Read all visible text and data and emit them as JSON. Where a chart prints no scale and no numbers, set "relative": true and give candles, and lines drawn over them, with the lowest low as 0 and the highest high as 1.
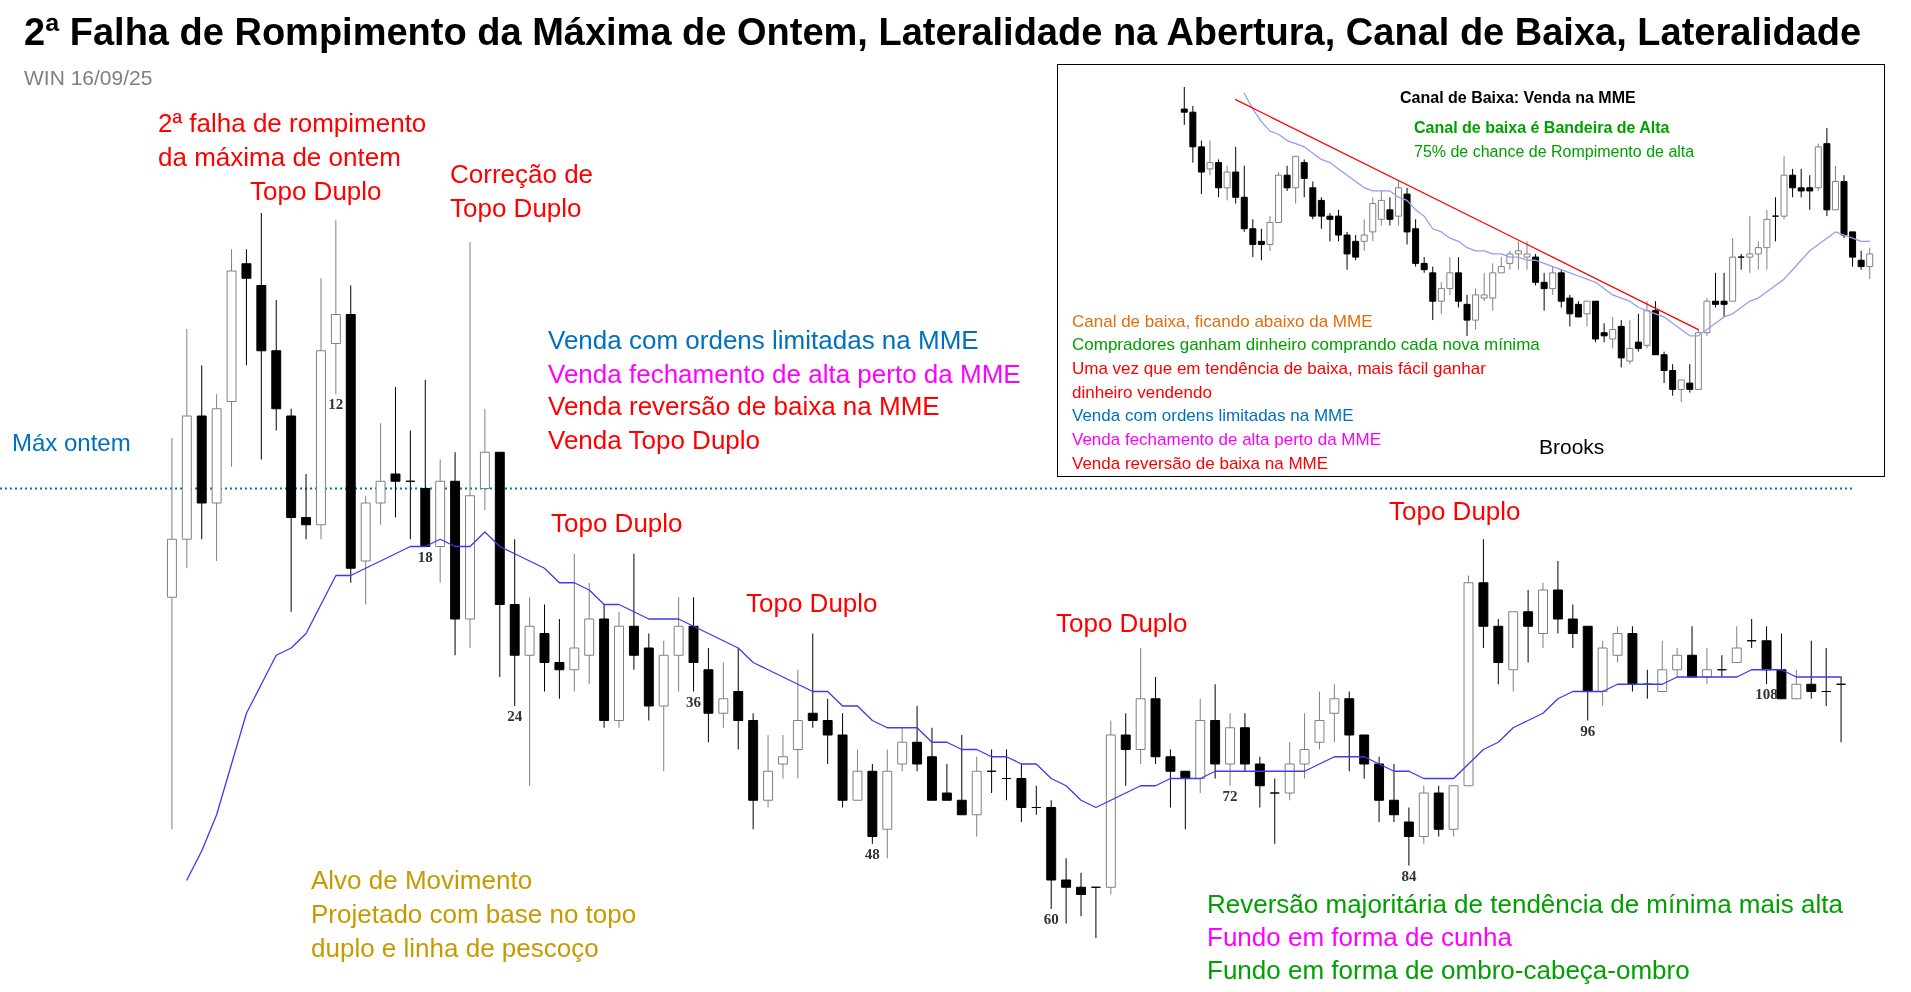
{
  "chart_data": [
    {
      "type": "candlestick",
      "title": "2ª Falha de Rompimento da Máxima de Ontem, Lateralidade na Abertura, Canal de Baixa, Lateralidade",
      "subtitle": "WIN 16/09/25",
      "relative": true,
      "categories": [
        null,
        null,
        null,
        null,
        null,
        null,
        null,
        null,
        null,
        null,
        null,
        "12",
        null,
        null,
        null,
        null,
        null,
        "18",
        null,
        null,
        null,
        null,
        null,
        "24",
        null,
        null,
        null,
        null,
        null,
        null,
        null,
        null,
        null,
        null,
        null,
        "36",
        null,
        null,
        null,
        null,
        null,
        null,
        null,
        null,
        null,
        null,
        null,
        "48",
        null,
        null,
        null,
        null,
        null,
        null,
        null,
        null,
        null,
        null,
        null,
        "60",
        null,
        null,
        null,
        null,
        null,
        null,
        null,
        null,
        null,
        null,
        null,
        "72",
        null,
        null,
        null,
        null,
        null,
        null,
        null,
        null,
        null,
        null,
        null,
        "84",
        null,
        null,
        null,
        null,
        null,
        null,
        null,
        null,
        null,
        null,
        null,
        "96",
        null,
        null,
        null,
        null,
        null,
        null,
        null,
        null,
        null,
        null,
        null,
        "108",
        null,
        null,
        null,
        null,
        null
      ],
      "ohlc": [
        [
          0.47,
          0.69,
          0.15,
          0.55
        ],
        [
          0.55,
          0.84,
          0.51,
          0.72
        ],
        [
          0.72,
          0.79,
          0.55,
          0.6
        ],
        [
          0.6,
          0.75,
          0.52,
          0.73
        ],
        [
          0.74,
          0.95,
          0.65,
          0.92
        ],
        [
          0.93,
          0.95,
          0.79,
          0.91
        ],
        [
          0.9,
          1.0,
          0.66,
          0.81
        ],
        [
          0.81,
          0.88,
          0.7,
          0.73
        ],
        [
          0.72,
          0.73,
          0.45,
          0.58
        ],
        [
          0.58,
          0.64,
          0.55,
          0.57
        ],
        [
          0.57,
          0.91,
          0.55,
          0.81
        ],
        [
          0.82,
          0.99,
          0.75,
          0.86
        ],
        [
          0.86,
          0.9,
          0.49,
          0.51
        ],
        [
          0.52,
          0.61,
          0.46,
          0.6
        ],
        [
          0.6,
          0.71,
          0.57,
          0.63
        ],
        [
          0.64,
          0.76,
          0.58,
          0.63
        ],
        [
          0.63,
          0.7,
          0.55,
          0.63
        ],
        [
          0.62,
          0.77,
          0.54,
          0.54
        ],
        [
          0.54,
          0.66,
          0.49,
          0.63
        ],
        [
          0.63,
          0.67,
          0.39,
          0.44
        ],
        [
          0.44,
          0.96,
          0.4,
          0.61
        ],
        [
          0.62,
          0.73,
          0.59,
          0.67
        ],
        [
          0.67,
          0.67,
          0.36,
          0.46
        ],
        [
          0.46,
          0.55,
          0.32,
          0.39
        ],
        [
          0.39,
          0.47,
          0.21,
          0.43
        ],
        [
          0.42,
          0.46,
          0.34,
          0.38
        ],
        [
          0.38,
          0.44,
          0.33,
          0.37
        ],
        [
          0.37,
          0.53,
          0.34,
          0.4
        ],
        [
          0.39,
          0.49,
          0.35,
          0.44
        ],
        [
          0.44,
          0.46,
          0.29,
          0.3
        ],
        [
          0.3,
          0.45,
          0.29,
          0.43
        ],
        [
          0.43,
          0.53,
          0.37,
          0.39
        ],
        [
          0.4,
          0.42,
          0.3,
          0.32
        ],
        [
          0.32,
          0.41,
          0.23,
          0.39
        ],
        [
          0.39,
          0.47,
          0.34,
          0.43
        ],
        [
          0.43,
          0.47,
          0.34,
          0.38
        ],
        [
          0.37,
          0.4,
          0.27,
          0.31
        ],
        [
          0.31,
          0.38,
          0.29,
          0.33
        ],
        [
          0.34,
          0.4,
          0.26,
          0.3
        ],
        [
          0.3,
          0.31,
          0.15,
          0.19
        ],
        [
          0.19,
          0.28,
          0.18,
          0.23
        ],
        [
          0.24,
          0.28,
          0.22,
          0.25
        ],
        [
          0.26,
          0.37,
          0.22,
          0.3
        ],
        [
          0.31,
          0.42,
          0.29,
          0.3
        ],
        [
          0.3,
          0.33,
          0.24,
          0.28
        ],
        [
          0.28,
          0.31,
          0.18,
          0.19
        ],
        [
          0.19,
          0.26,
          0.19,
          0.23
        ],
        [
          0.23,
          0.24,
          0.13,
          0.14
        ],
        [
          0.15,
          0.26,
          0.11,
          0.23
        ],
        [
          0.24,
          0.29,
          0.23,
          0.27
        ],
        [
          0.27,
          0.32,
          0.23,
          0.24
        ],
        [
          0.25,
          0.29,
          0.19,
          0.19
        ],
        [
          0.2,
          0.24,
          0.19,
          0.19
        ],
        [
          0.19,
          0.28,
          0.17,
          0.17
        ],
        [
          0.17,
          0.25,
          0.14,
          0.23
        ],
        [
          0.23,
          0.26,
          0.2,
          0.23
        ],
        [
          0.22,
          0.26,
          0.19,
          0.22
        ],
        [
          0.22,
          0.24,
          0.16,
          0.18
        ],
        [
          0.18,
          0.21,
          0.17,
          0.18
        ],
        [
          0.18,
          0.19,
          0.04,
          0.08
        ],
        [
          0.08,
          0.11,
          0.02,
          0.07
        ],
        [
          0.07,
          0.09,
          0.03,
          0.06
        ],
        [
          0.07,
          0.07,
          0.0,
          0.07
        ],
        [
          0.07,
          0.3,
          0.06,
          0.28
        ],
        [
          0.28,
          0.31,
          0.21,
          0.26
        ],
        [
          0.26,
          0.4,
          0.24,
          0.33
        ],
        [
          0.33,
          0.36,
          0.24,
          0.25
        ],
        [
          0.25,
          0.26,
          0.18,
          0.23
        ],
        [
          0.23,
          0.23,
          0.15,
          0.22
        ],
        [
          0.22,
          0.33,
          0.2,
          0.3
        ],
        [
          0.3,
          0.35,
          0.22,
          0.24
        ],
        [
          0.24,
          0.31,
          0.21,
          0.29
        ],
        [
          0.29,
          0.31,
          0.23,
          0.24
        ],
        [
          0.24,
          0.25,
          0.18,
          0.21
        ],
        [
          0.2,
          0.22,
          0.13,
          0.2
        ],
        [
          0.2,
          0.27,
          0.19,
          0.24
        ],
        [
          0.24,
          0.31,
          0.22,
          0.26
        ],
        [
          0.27,
          0.34,
          0.26,
          0.3
        ],
        [
          0.31,
          0.35,
          0.27,
          0.33
        ],
        [
          0.33,
          0.34,
          0.23,
          0.28
        ],
        [
          0.28,
          0.28,
          0.22,
          0.24
        ],
        [
          0.24,
          0.25,
          0.16,
          0.19
        ],
        [
          0.19,
          0.24,
          0.16,
          0.17
        ],
        [
          0.16,
          0.18,
          0.1,
          0.14
        ],
        [
          0.14,
          0.21,
          0.13,
          0.2
        ],
        [
          0.2,
          0.21,
          0.14,
          0.15
        ],
        [
          0.15,
          0.21,
          0.14,
          0.21
        ],
        [
          0.21,
          0.5,
          0.21,
          0.49
        ],
        [
          0.49,
          0.55,
          0.4,
          0.43
        ],
        [
          0.43,
          0.44,
          0.35,
          0.38
        ],
        [
          0.37,
          0.45,
          0.34,
          0.45
        ],
        [
          0.45,
          0.48,
          0.38,
          0.43
        ],
        [
          0.42,
          0.49,
          0.4,
          0.48
        ],
        [
          0.48,
          0.52,
          0.42,
          0.44
        ],
        [
          0.44,
          0.46,
          0.4,
          0.42
        ],
        [
          0.43,
          0.43,
          0.3,
          0.34
        ],
        [
          0.34,
          0.41,
          0.32,
          0.4
        ],
        [
          0.39,
          0.43,
          0.38,
          0.42
        ],
        [
          0.42,
          0.43,
          0.34,
          0.35
        ],
        [
          0.35,
          0.37,
          0.33,
          0.35
        ],
        [
          0.34,
          0.41,
          0.34,
          0.37
        ],
        [
          0.37,
          0.4,
          0.36,
          0.39
        ],
        [
          0.39,
          0.43,
          0.36,
          0.36
        ],
        [
          0.36,
          0.4,
          0.35,
          0.37
        ],
        [
          0.37,
          0.39,
          0.36,
          0.37
        ],
        [
          0.38,
          0.43,
          0.38,
          0.4
        ],
        [
          0.41,
          0.44,
          0.4,
          0.41
        ],
        [
          0.41,
          0.43,
          0.35,
          0.37
        ],
        [
          0.37,
          0.42,
          0.33,
          0.33
        ],
        [
          0.33,
          0.37,
          0.33,
          0.35
        ],
        [
          0.35,
          0.41,
          0.33,
          0.34
        ],
        [
          0.34,
          0.4,
          0.32,
          0.34
        ],
        [
          0.35,
          0.36,
          0.27,
          0.35
        ]
      ],
      "series": [
        {
          "type": "line",
          "color": "#3b3bf0",
          "values": [
            null,
            0.08,
            0.12,
            0.17,
            0.24,
            0.31,
            0.35,
            0.39,
            0.4,
            0.42,
            0.46,
            0.5,
            0.5,
            0.51,
            0.52,
            0.53,
            0.54,
            0.54,
            0.55,
            0.54,
            0.54,
            0.56,
            0.54,
            0.53,
            0.52,
            0.51,
            0.49,
            0.49,
            0.48,
            0.46,
            0.46,
            0.45,
            0.44,
            0.44,
            0.44,
            0.43,
            0.42,
            0.41,
            0.4,
            0.38,
            0.37,
            0.36,
            0.35,
            0.34,
            0.34,
            0.32,
            0.32,
            0.3,
            0.29,
            0.29,
            0.29,
            0.27,
            0.27,
            0.26,
            0.26,
            0.25,
            0.25,
            0.24,
            0.24,
            0.22,
            0.21,
            0.19,
            0.18,
            0.19,
            0.2,
            0.21,
            0.21,
            0.22,
            0.22,
            0.22,
            0.23,
            0.23,
            0.23,
            0.23,
            0.23,
            0.23,
            0.23,
            0.24,
            0.25,
            0.25,
            0.25,
            0.24,
            0.23,
            0.23,
            0.22,
            0.22,
            0.22,
            0.24,
            0.26,
            0.27,
            0.29,
            0.3,
            0.31,
            0.33,
            0.34,
            0.34,
            0.34,
            0.35,
            0.35,
            0.35,
            0.35,
            0.36,
            0.36,
            0.36,
            0.36,
            0.36,
            0.37,
            0.37,
            0.37,
            0.36,
            0.36,
            0.36,
            0.36
          ]
        }
      ],
      "ref_lines": [
        {
          "axis": "y",
          "value": 0.62,
          "label": "Máx ontem",
          "color": "#0070c0",
          "line_style": "dotted"
        }
      ],
      "annotations": [
        "2ª falha de rompimento\nda máxima de ontem",
        "Topo Duplo",
        "Correção de\nTopo Duplo",
        "Venda com ordens limitadas na MME",
        "Venda fechamento de alta perto da MME",
        "Venda reversão de baixa na MME",
        "Venda Topo Duplo",
        "Topo Duplo",
        "Topo Duplo",
        "Topo Duplo",
        "Topo Duplo",
        "Alvo de Movimento\nProjetado com base no topo\nduplo e linha de pescoço",
        "Reversão majoritária de tendência de mínima mais alta",
        "Fundo em forma de cunha",
        "Fundo em forma de ombro-cabeça-ombro"
      ]
    },
    {
      "type": "candlestick",
      "title": "Canal de Baixa: Venda na MME",
      "relative": true,
      "categories": [
        null,
        null,
        null,
        null,
        null,
        null,
        null,
        null,
        null,
        null,
        null,
        null,
        null,
        null,
        null,
        null,
        null,
        null,
        null,
        null,
        null,
        null,
        null,
        null,
        null,
        null,
        null,
        null,
        null,
        null,
        null,
        null,
        null,
        null,
        null,
        null,
        null,
        null,
        null,
        null,
        null,
        null,
        null,
        null,
        null,
        null,
        null,
        null,
        null,
        null,
        null,
        null,
        null,
        null,
        null,
        null,
        null,
        null,
        null,
        null,
        null,
        null,
        null,
        null,
        null,
        null,
        null,
        null,
        null,
        null,
        null,
        null,
        null,
        null,
        null,
        null,
        null,
        null,
        null,
        null,
        null
      ],
      "ohlc": [
        [
          0.93,
          1.0,
          0.88,
          0.92
        ],
        [
          0.92,
          0.94,
          0.76,
          0.81
        ],
        [
          0.81,
          0.83,
          0.66,
          0.73
        ],
        [
          0.74,
          0.83,
          0.72,
          0.76
        ],
        [
          0.76,
          0.77,
          0.65,
          0.68
        ],
        [
          0.68,
          0.75,
          0.64,
          0.73
        ],
        [
          0.73,
          0.81,
          0.63,
          0.65
        ],
        [
          0.65,
          0.75,
          0.54,
          0.55
        ],
        [
          0.55,
          0.58,
          0.46,
          0.5
        ],
        [
          0.51,
          0.55,
          0.45,
          0.5
        ],
        [
          0.5,
          0.59,
          0.48,
          0.57
        ],
        [
          0.57,
          0.73,
          0.57,
          0.72
        ],
        [
          0.72,
          0.75,
          0.67,
          0.68
        ],
        [
          0.68,
          0.78,
          0.63,
          0.78
        ],
        [
          0.76,
          0.77,
          0.65,
          0.71
        ],
        [
          0.68,
          0.7,
          0.58,
          0.59
        ],
        [
          0.64,
          0.65,
          0.55,
          0.59
        ],
        [
          0.59,
          0.6,
          0.51,
          0.58
        ],
        [
          0.59,
          0.61,
          0.51,
          0.53
        ],
        [
          0.53,
          0.54,
          0.42,
          0.47
        ],
        [
          0.51,
          0.53,
          0.45,
          0.46
        ],
        [
          0.51,
          0.58,
          0.48,
          0.53
        ],
        [
          0.54,
          0.65,
          0.51,
          0.63
        ],
        [
          0.58,
          0.67,
          0.56,
          0.64
        ],
        [
          0.61,
          0.65,
          0.56,
          0.58
        ],
        [
          0.59,
          0.7,
          0.56,
          0.68
        ],
        [
          0.66,
          0.68,
          0.5,
          0.54
        ],
        [
          0.55,
          0.58,
          0.43,
          0.44
        ],
        [
          0.44,
          0.46,
          0.41,
          0.42
        ],
        [
          0.41,
          0.43,
          0.26,
          0.32
        ],
        [
          0.32,
          0.38,
          0.28,
          0.36
        ],
        [
          0.36,
          0.46,
          0.34,
          0.41
        ],
        [
          0.41,
          0.46,
          0.3,
          0.32
        ],
        [
          0.31,
          0.34,
          0.21,
          0.26
        ],
        [
          0.26,
          0.36,
          0.23,
          0.34
        ],
        [
          0.33,
          0.41,
          0.32,
          0.34
        ],
        [
          0.33,
          0.44,
          0.29,
          0.41
        ],
        [
          0.41,
          0.46,
          0.41,
          0.43
        ],
        [
          0.44,
          0.48,
          0.42,
          0.47
        ],
        [
          0.47,
          0.51,
          0.42,
          0.48
        ],
        [
          0.46,
          0.51,
          0.42,
          0.47
        ],
        [
          0.46,
          0.47,
          0.37,
          0.38
        ],
        [
          0.38,
          0.41,
          0.29,
          0.36
        ],
        [
          0.36,
          0.43,
          0.34,
          0.41
        ],
        [
          0.41,
          0.42,
          0.3,
          0.32
        ],
        [
          0.33,
          0.34,
          0.24,
          0.28
        ],
        [
          0.31,
          0.32,
          0.27,
          0.27
        ],
        [
          0.28,
          0.32,
          0.24,
          0.32
        ],
        [
          0.32,
          0.32,
          0.19,
          0.2
        ],
        [
          0.22,
          0.25,
          0.19,
          0.21
        ],
        [
          0.2,
          0.27,
          0.17,
          0.23
        ],
        [
          0.24,
          0.26,
          0.11,
          0.14
        ],
        [
          0.13,
          0.26,
          0.12,
          0.17
        ],
        [
          0.19,
          0.28,
          0.16,
          0.17
        ],
        [
          0.18,
          0.32,
          0.17,
          0.29
        ],
        [
          0.29,
          0.32,
          0.15,
          0.15
        ],
        [
          0.15,
          0.16,
          0.06,
          0.1
        ],
        [
          0.1,
          0.12,
          0.02,
          0.04
        ],
        [
          0.04,
          0.07,
          0.0,
          0.07
        ],
        [
          0.06,
          0.12,
          0.03,
          0.04
        ],
        [
          0.04,
          0.23,
          0.04,
          0.22
        ],
        [
          0.22,
          0.33,
          0.21,
          0.32
        ],
        [
          0.32,
          0.41,
          0.3,
          0.31
        ],
        [
          0.32,
          0.41,
          0.27,
          0.31
        ],
        [
          0.32,
          0.52,
          0.32,
          0.46
        ],
        [
          0.46,
          0.47,
          0.42,
          0.46
        ],
        [
          0.46,
          0.59,
          0.41,
          0.47
        ],
        [
          0.47,
          0.51,
          0.42,
          0.49
        ],
        [
          0.49,
          0.61,
          0.42,
          0.58
        ],
        [
          0.59,
          0.65,
          0.51,
          0.59
        ],
        [
          0.59,
          0.78,
          0.58,
          0.72
        ],
        [
          0.72,
          0.74,
          0.65,
          0.68
        ],
        [
          0.68,
          0.74,
          0.65,
          0.67
        ],
        [
          0.68,
          0.72,
          0.61,
          0.67
        ],
        [
          0.68,
          0.82,
          0.67,
          0.81
        ],
        [
          0.82,
          0.87,
          0.59,
          0.61
        ],
        [
          0.61,
          0.75,
          0.61,
          0.7
        ],
        [
          0.7,
          0.72,
          0.52,
          0.53
        ],
        [
          0.54,
          0.54,
          0.43,
          0.46
        ],
        [
          0.45,
          0.48,
          0.42,
          0.43
        ],
        [
          0.43,
          0.49,
          0.39,
          0.47
        ]
      ],
      "series": [
        {
          "type": "line",
          "color": "#9a9aee",
          "values": [
            null,
            null,
            null,
            null,
            null,
            null,
            null,
            0.98,
            0.93,
            0.89,
            0.86,
            0.85,
            0.83,
            0.82,
            0.81,
            0.79,
            0.77,
            0.76,
            0.74,
            0.72,
            0.7,
            0.68,
            0.67,
            0.67,
            0.67,
            0.65,
            0.64,
            0.61,
            0.59,
            0.55,
            0.54,
            0.52,
            0.51,
            0.49,
            0.48,
            0.48,
            0.47,
            0.47,
            0.46,
            0.46,
            0.45,
            0.45,
            0.44,
            0.43,
            0.42,
            0.41,
            0.4,
            0.39,
            0.38,
            0.36,
            0.34,
            0.33,
            0.32,
            0.3,
            0.29,
            0.28,
            0.27,
            0.25,
            0.23,
            0.21,
            0.21,
            0.23,
            0.25,
            0.27,
            0.28,
            0.3,
            0.32,
            0.33,
            0.35,
            0.37,
            0.39,
            0.42,
            0.45,
            0.48,
            0.5,
            0.52,
            0.54,
            0.53,
            0.52,
            0.51,
            0.51
          ]
        },
        {
          "type": "line",
          "color": "#ff0000",
          "values": [
            null,
            null,
            null,
            null,
            null,
            null,
            0.96,
            null,
            null,
            null,
            null,
            null,
            null,
            null,
            null,
            null,
            null,
            null,
            null,
            null,
            null,
            null,
            null,
            null,
            null,
            null,
            null,
            null,
            null,
            null,
            null,
            null,
            null,
            null,
            null,
            null,
            null,
            null,
            null,
            null,
            null,
            null,
            null,
            null,
            null,
            null,
            null,
            null,
            null,
            null,
            null,
            null,
            null,
            null,
            null,
            null,
            null,
            null,
            null,
            null,
            0.23,
            null,
            null,
            null,
            null,
            null,
            null,
            null,
            null,
            null,
            null,
            null,
            null,
            null,
            null,
            null,
            null,
            null,
            null,
            null,
            null
          ]
        }
      ],
      "annotations": [
        "Canal de baixa é Bandeira de Alta",
        "75% de chance de Rompimento de alta",
        "Canal de baixa, ficando abaixo da MME",
        "Compradores ganham dinheiro comprando cada nova mínima",
        "Uma vez que em tendência de baixa, mais fácil ganhar\ndinheiro vendendo",
        "Venda com ordens limitadas na MME",
        "Venda fechamento de alta perto da MME",
        "Venda reversão de baixa na MME",
        "Brooks"
      ]
    }
  ]
}
